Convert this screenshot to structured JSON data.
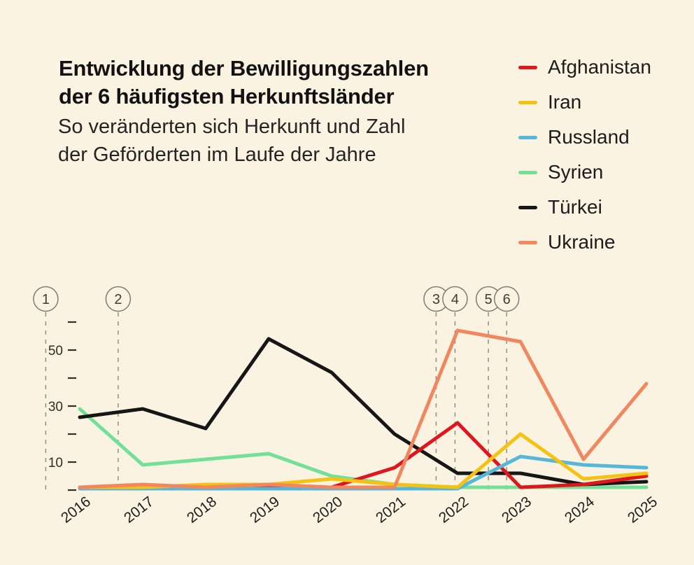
{
  "header": {
    "title_line1": "Entwicklung der Bewilligungszahlen",
    "title_line2": "der 6 häufigsten Herkunftsländer",
    "subtitle_line1": "So veränderten sich Herkunft und Zahl",
    "subtitle_line2": "der Geförderten im Laufe der Jahre"
  },
  "chart_data": {
    "type": "line",
    "x": [
      2016,
      2017,
      2018,
      2019,
      2020,
      2021,
      2022,
      2023,
      2024,
      2025
    ],
    "series": [
      {
        "name": "Afghanistan",
        "color": "#e0161f",
        "values": [
          1,
          1,
          1,
          1,
          1,
          8,
          24,
          1,
          2,
          5
        ]
      },
      {
        "name": "Iran",
        "color": "#f5c211",
        "values": [
          1,
          1,
          2,
          2,
          4,
          2,
          1,
          20,
          4,
          6
        ]
      },
      {
        "name": "Russland",
        "color": "#57b7d8",
        "values": [
          0.5,
          0.5,
          0.5,
          0.5,
          0.5,
          0.5,
          0.5,
          12,
          9,
          8
        ]
      },
      {
        "name": "Syrien",
        "color": "#72e096",
        "values": [
          29,
          9,
          11,
          13,
          5,
          2,
          1,
          1,
          1,
          1
        ]
      },
      {
        "name": "Türkei",
        "color": "#161616",
        "values": [
          26,
          29,
          22,
          54,
          42,
          20,
          6,
          6,
          2,
          3
        ]
      },
      {
        "name": "Ukraine",
        "color": "#f1875f",
        "values": [
          1,
          2,
          1,
          2,
          1,
          1,
          57,
          53,
          11,
          38
        ]
      }
    ],
    "y_axis": {
      "tick_values": [
        0,
        10,
        20,
        30,
        40,
        50,
        60
      ],
      "labeled_ticks": [
        10,
        30,
        50
      ],
      "range": [
        0,
        62
      ]
    },
    "annotations": [
      {
        "number": "1",
        "year_position": 2015.46
      },
      {
        "number": "2",
        "year_position": 2016.61
      },
      {
        "number": "3",
        "year_position": 2021.66
      },
      {
        "number": "4",
        "year_position": 2021.96
      },
      {
        "number": "5",
        "year_position": 2022.49
      },
      {
        "number": "6",
        "year_position": 2022.78
      }
    ],
    "grid": false,
    "legend_position": "top-right",
    "background": "#faf3e2"
  },
  "colors": {
    "background": "#faf3e2",
    "axis_text": "#2e2e2a",
    "annotation_gray": "#8f8f87"
  }
}
